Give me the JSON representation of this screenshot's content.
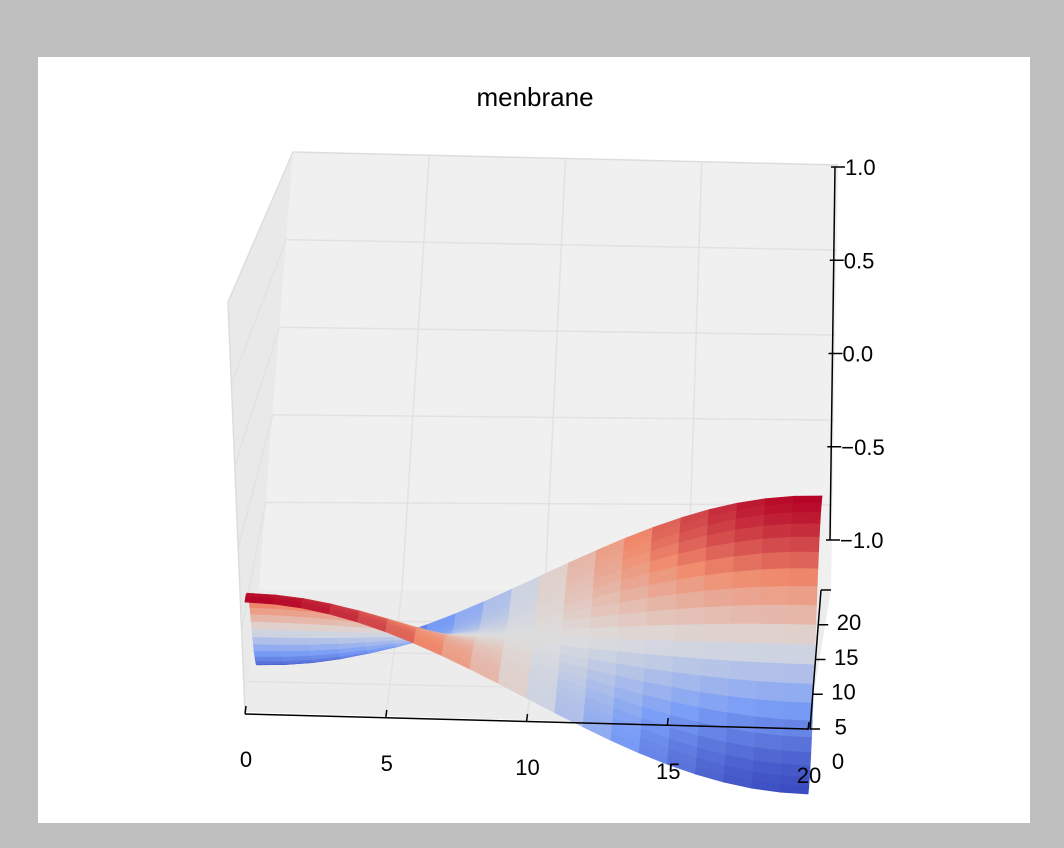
{
  "chart_data": {
    "type": "surface",
    "title": "menbrane",
    "xlabel": "",
    "ylabel": "",
    "zlabel": "",
    "colormap": "coolwarm",
    "function": "cos(pi*x/20) * cos(pi*y/20), x in [0,20], y in [0,20]",
    "grid_size": [
      21,
      21
    ],
    "xlim": [
      0,
      20
    ],
    "ylim": [
      0,
      20
    ],
    "zlim": [
      -1.0,
      1.0
    ],
    "x_ticks": [
      "0",
      "5",
      "10",
      "15",
      "20"
    ],
    "y_ticks": [
      "0",
      "5",
      "10",
      "15",
      "20"
    ],
    "z_ticks": [
      "−1.0",
      "−0.5",
      "0.0",
      "0.5",
      "1.0"
    ],
    "grid": true,
    "corner_values": {
      "x0_y0": 1.0,
      "x20_y0": -1.0,
      "x0_y20": -1.0,
      "x20_y20": 1.0
    },
    "colors": {
      "low": "#3b4cc0",
      "mid": "#dddddd",
      "high": "#b40426",
      "pane": "#f0f0f0",
      "gridline": "#e2e2e2",
      "figure_bg": "#ffffff",
      "window_bg": "#bfbfbf"
    }
  }
}
